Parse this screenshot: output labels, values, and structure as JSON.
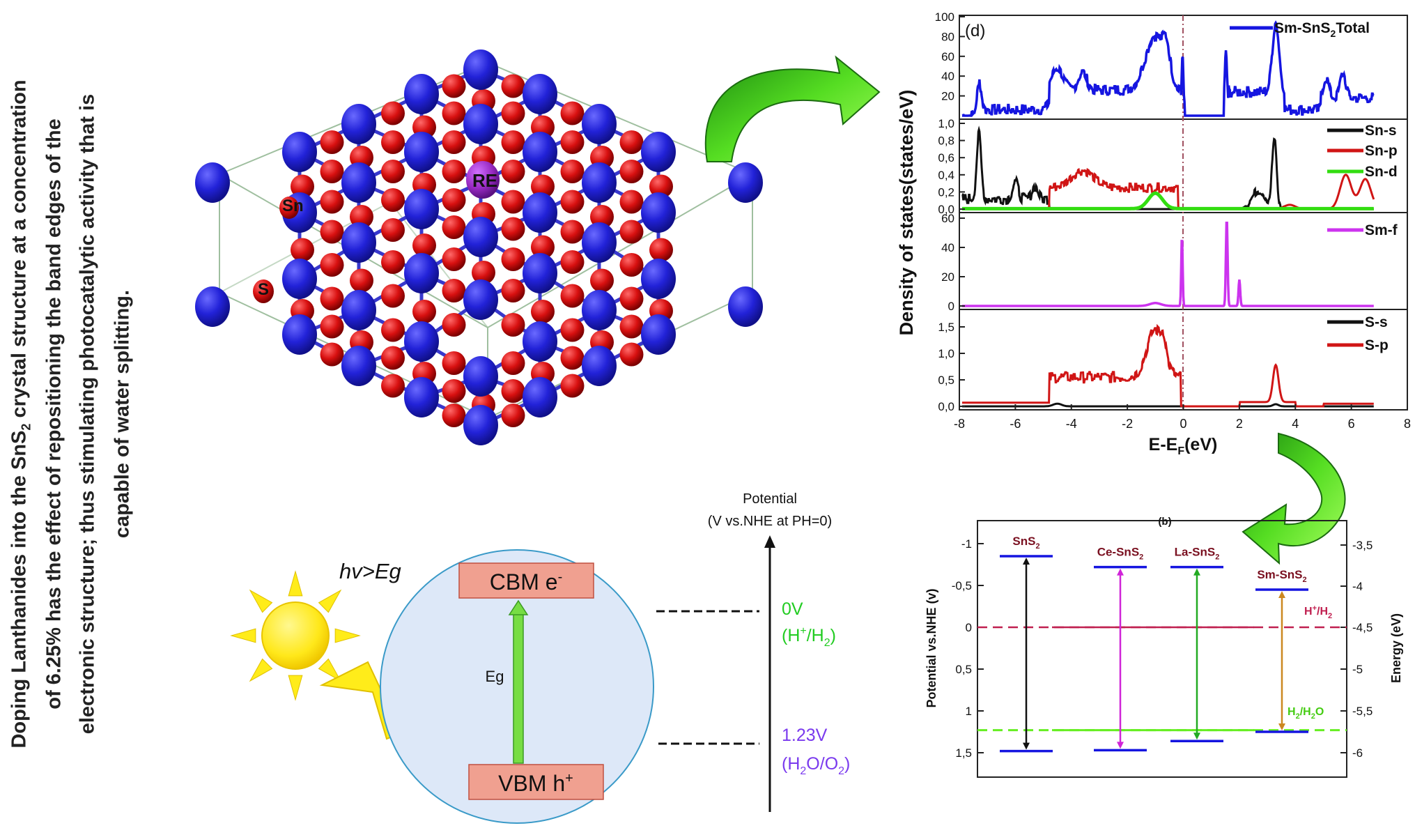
{
  "caption": {
    "line1": "Doping Lanthanides into the SnS",
    "line1_sub": "2",
    "line1_rest": " crystal structure at a concentration",
    "line2": "of 6.25% has the effect of repositioning the band edges of the",
    "line3": "electronic structure; thus stimulating photocatalytic activity that is",
    "line4": "capable of water splitting."
  },
  "crystal": {
    "labels": {
      "re": "RE",
      "sn": "Sn",
      "s": "S"
    },
    "colors": {
      "sn": "#2b2fd9",
      "s": "#d81010",
      "re": "#9a2bc4",
      "bond": "#3838cc"
    }
  },
  "dos": {
    "panel_label": "(d)",
    "y_axis_label": "Density of states(states/eV)",
    "x_axis_label": "E-E",
    "x_axis_label_sub": "F",
    "x_axis_label_rest": "(eV)",
    "x_ticks": [
      "-8",
      "-6",
      "-4",
      "-2",
      "0",
      "2",
      "4",
      "6",
      "8"
    ],
    "panels": [
      {
        "yticks": [
          "100",
          "80",
          "60",
          "40",
          "20"
        ],
        "legend": [
          {
            "name": "Sm-SnS",
            "sub": "2",
            "rest": "Total",
            "color": "#1515e0"
          }
        ]
      },
      {
        "yticks": [
          "1,0",
          "0,8",
          "0,6",
          "0,4",
          "0,2",
          "0,0"
        ],
        "legend": [
          {
            "name": "Sn-s",
            "color": "#111111"
          },
          {
            "name": "Sn-p",
            "color": "#d01515"
          },
          {
            "name": "Sn-d",
            "color": "#33dd11"
          }
        ]
      },
      {
        "yticks": [
          "60",
          "40",
          "20",
          "0"
        ],
        "legend": [
          {
            "name": "Sm-f",
            "color": "#cc33ee"
          }
        ]
      },
      {
        "yticks": [
          "1,5",
          "1,0",
          "0,5",
          "0,0"
        ],
        "legend": [
          {
            "name": "S-s",
            "color": "#111111"
          },
          {
            "name": "S-p",
            "color": "#d01515"
          }
        ]
      }
    ]
  },
  "band": {
    "panel_label": "(b)",
    "y_left_label": "Potential vs.NHE (v)",
    "y_right_label": "Energy (eV)",
    "left_ticks": [
      "-1",
      "-0,5",
      "0",
      "0,5",
      "1",
      "1,5"
    ],
    "right_ticks": [
      "-3,5",
      "-4",
      "-4,5",
      "-5",
      "-5,5",
      "-6"
    ],
    "materials": [
      {
        "name": "SnS",
        "sub": "2",
        "color": "#111111",
        "label_color": "#7a1020",
        "cbm": -0.85,
        "vbm": 1.48
      },
      {
        "name": "Ce-SnS",
        "sub": "2",
        "color": "#d024d8",
        "label_color": "#7a1020",
        "cbm": -0.72,
        "vbm": 1.47
      },
      {
        "name": "La-SnS",
        "sub": "2",
        "color": "#22aa22",
        "label_color": "#7a1020",
        "cbm": -0.72,
        "vbm": 1.36
      },
      {
        "name": "Sm-SnS",
        "sub": "2",
        "color": "#cc8820",
        "label_color": "#7a1020",
        "cbm": -0.45,
        "vbm": 1.25
      }
    ],
    "h_line_label": "H",
    "h_line_label_sup": "+",
    "h_line_label_rest": "/H",
    "h_line_label_sub": "2",
    "o_line_label": "H",
    "o_line_label_sub": "2",
    "o_line_label_rest": "/H",
    "o_line_label_sub2": "2",
    "o_line_label_end": "O",
    "h_line_color": "#c02050",
    "o_line_color": "#66ee22"
  },
  "photo": {
    "hv_label": "hv>Eg",
    "cbm_label": "CBM e",
    "cbm_sup": "-",
    "vbm_label": "VBM h",
    "vbm_sup": "+",
    "eg_label": "Eg",
    "potential_title_1": "Potential",
    "potential_title_2": "(V vs.NHE at PH=0)",
    "zero_label": "0V",
    "zero_sub_label": "(H",
    "zero_sub_sup": "+",
    "zero_sub_rest": "/H",
    "zero_sub_sub": "2",
    "zero_sub_end": ")",
    "o_label": "1.23V",
    "o_sub_label": "(H",
    "o_sub_sub": "2",
    "o_sub_rest": "O/O",
    "o_sub_sub2": "2",
    "o_sub_end": ")",
    "zero_color": "#22cc22",
    "o_color": "#7a3aee",
    "box_fill": "#f0a090",
    "circle_fill": "#dde8f8"
  }
}
